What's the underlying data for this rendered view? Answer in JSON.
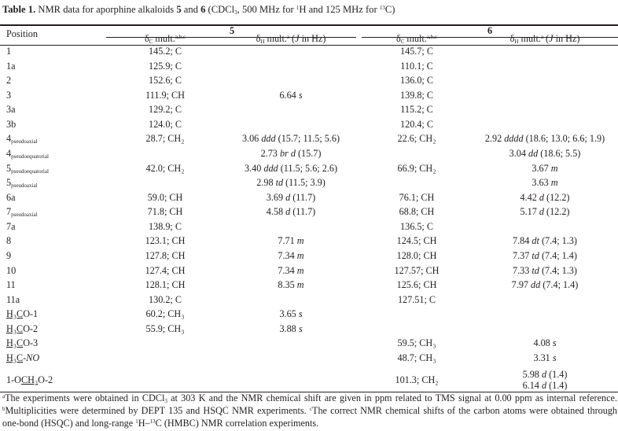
{
  "caption": {
    "label": "Table 1.",
    "t1": " NMR data for aporphine alkaloids ",
    "c5": "5",
    "t2": " and ",
    "c6": "6",
    "t3": " (CDCl",
    "sub3": "3",
    "t4": ", 500 MHz for ",
    "sup1": "1",
    "t5": "H and 125 MHz for ",
    "sup13": "13",
    "t6": "C)"
  },
  "header": {
    "position": "Position",
    "compound5": "5",
    "compound6": "6",
    "dc": {
      "delta": "δ",
      "sub": "C",
      "text": " mult.",
      "sup": "a,b,c"
    },
    "dh": {
      "delta": "δ",
      "sub": "H",
      "text": " mult.",
      "sup": "a",
      "paren_open": " (",
      "j": "J",
      "paren_close": " in Hz)"
    }
  },
  "rows": [
    {
      "pos": {
        "t": "1"
      },
      "c5": "145.2; C",
      "h5": null,
      "c6": "145.7; C",
      "h6": null
    },
    {
      "pos": {
        "t": "1a"
      },
      "c5": "125.9; C",
      "h5": null,
      "c6": "110.1; C",
      "h6": null
    },
    {
      "pos": {
        "t": "2"
      },
      "c5": "152.6; C",
      "h5": null,
      "c6": "136.0; C",
      "h6": null
    },
    {
      "pos": {
        "t": "3"
      },
      "c5": "111.9; CH",
      "h5": {
        "v": "6.64",
        "m": "s",
        "j": ""
      },
      "c6": "139.8; C",
      "h6": null
    },
    {
      "pos": {
        "t": "3a"
      },
      "c5": "129.2; C",
      "h5": null,
      "c6": "115.2; C",
      "h6": null
    },
    {
      "pos": {
        "t": "3b"
      },
      "c5": "124.0; C",
      "h5": null,
      "c6": "120.4; C",
      "h6": null
    },
    {
      "pos": {
        "t": "4",
        "sub": "pseudoaxial"
      },
      "c5": "28.7; CH₂",
      "h5": {
        "v": "3.06",
        "m": "ddd",
        "j": "(15.7; 11.5; 5.6)"
      },
      "c6": "22.6; CH₂",
      "h6": {
        "v": "2.92",
        "m": "dddd",
        "j": "(18.6; 13.0; 6.6; 1.9)"
      }
    },
    {
      "pos": {
        "t": "4",
        "sub": "pseudoequatorial"
      },
      "c5": null,
      "h5": {
        "v": "2.73",
        "m": "br d",
        "j": "(15.7)"
      },
      "c6": null,
      "h6": {
        "v": "3.04",
        "m": "dd",
        "j": "(18.6; 5.5)"
      }
    },
    {
      "pos": {
        "t": "5",
        "sub": "pseudoequatorial"
      },
      "c5": "42.0; CH₂",
      "h5": {
        "v": "3.40",
        "m": "ddd",
        "j": "(11.5; 5.6; 2.6)"
      },
      "c6": "66.9; CH₂",
      "h6": {
        "v": "3.67",
        "m": "m",
        "j": ""
      }
    },
    {
      "pos": {
        "t": "5",
        "sub": "pseudoaxial"
      },
      "c5": null,
      "h5": {
        "v": "2.98",
        "m": "td",
        "j": "(11.5; 3.9)"
      },
      "c6": null,
      "h6": {
        "v": "3.63",
        "m": "m",
        "j": ""
      }
    },
    {
      "pos": {
        "t": "6a"
      },
      "c5": "59.0; CH",
      "h5": {
        "v": "3.69",
        "m": "d",
        "j": "(11.7)"
      },
      "c6": "76.1; CH",
      "h6": {
        "v": "4.42",
        "m": "d",
        "j": "(12.2)"
      }
    },
    {
      "pos": {
        "t": "7",
        "sub": "pseudoaxial"
      },
      "c5": "71.8; CH",
      "h5": {
        "v": "4.58",
        "m": "d",
        "j": "(11.7)"
      },
      "c6": "68.8; CH",
      "h6": {
        "v": "5.17",
        "m": "d",
        "j": "(12.2)"
      }
    },
    {
      "pos": {
        "t": "7a"
      },
      "c5": "138.9; C",
      "h5": null,
      "c6": "136.5; C",
      "h6": null
    },
    {
      "pos": {
        "t": "8"
      },
      "c5": "123.1; CH",
      "h5": {
        "v": "7.71",
        "m": "m",
        "j": ""
      },
      "c6": "124.5; CH",
      "h6": {
        "v": "7.84",
        "m": "dt",
        "j": "(7.4; 1.3)"
      }
    },
    {
      "pos": {
        "t": "9"
      },
      "c5": "127.8; CH",
      "h5": {
        "v": "7.34",
        "m": "m",
        "j": ""
      },
      "c6": "128.0; CH",
      "h6": {
        "v": "7.37",
        "m": "td",
        "j": "(7.4; 1.4)"
      }
    },
    {
      "pos": {
        "t": "10"
      },
      "c5": "127.4; CH",
      "h5": {
        "v": "7.34",
        "m": "m",
        "j": ""
      },
      "c6": "127.57; CH",
      "h6": {
        "v": "7.33",
        "m": "td",
        "j": "(7.4; 1.3)"
      }
    },
    {
      "pos": {
        "t": "11"
      },
      "c5": "128.1; CH",
      "h5": {
        "v": "8.35",
        "m": "m",
        "j": ""
      },
      "c6": "125.6; CH",
      "h6": {
        "v": "7.97",
        "m": "dd",
        "j": "(7.4; 1.4)"
      }
    },
    {
      "pos": {
        "t": "11a"
      },
      "c5": "130.2; C",
      "h5": null,
      "c6": "127.51; C",
      "h6": null
    },
    {
      "pos": {
        "u": "H₃C",
        "t2": "O-1"
      },
      "c5": "60.2; CH₃",
      "h5": {
        "v": "3.65",
        "m": "s",
        "j": ""
      },
      "c6": null,
      "h6": null
    },
    {
      "pos": {
        "u": "H₃C",
        "t2": "O-2"
      },
      "c5": "55.9; CH₃",
      "h5": {
        "v": "3.88",
        "m": "s",
        "j": ""
      },
      "c6": null,
      "h6": null
    },
    {
      "pos": {
        "u": "H₃C",
        "t2": "O-3"
      },
      "c5": null,
      "h5": null,
      "c6": "59.5; CH₃",
      "h6": {
        "v": "4.08",
        "m": "s",
        "j": ""
      }
    },
    {
      "pos": {
        "u": "H₃C",
        "t2": "-",
        "i": "NO"
      },
      "c5": null,
      "h5": null,
      "c6": "48.7; CH₃",
      "h6": {
        "v": "3.31",
        "m": "s",
        "j": ""
      }
    },
    {
      "pos": {
        "t": "1-O",
        "u": "CH₂",
        "t2": "O-2"
      },
      "c5": null,
      "h5": null,
      "c6": "101.3; CH₂",
      "h6": {
        "v": "5.98",
        "m": "d",
        "j": "(1.4)"
      },
      "h6b": {
        "v": "6.14",
        "m": "d",
        "j": "(1.4)"
      }
    }
  ],
  "notes": {
    "a_mark": "a",
    "a1": "The experiments were obtained in CDCl",
    "a_sub": "3",
    "a2": " at 303 K and the NMR chemical shift are given in ppm related to TMS signal at 0.00 ppm as internal reference. ",
    "b_mark": "b",
    "b": "Multiplicities were determined by DEPT 135 and HSQC NMR experiments. ",
    "c_mark": "c",
    "c1": "The correct NMR chemical shifts of the carbon atoms were obtained through one-bond (HSQC) and long-range ",
    "c_sup1": "1",
    "c2": "H–",
    "c_sup13": "13",
    "c3": "C (HMBC) NMR correlation experiments."
  }
}
